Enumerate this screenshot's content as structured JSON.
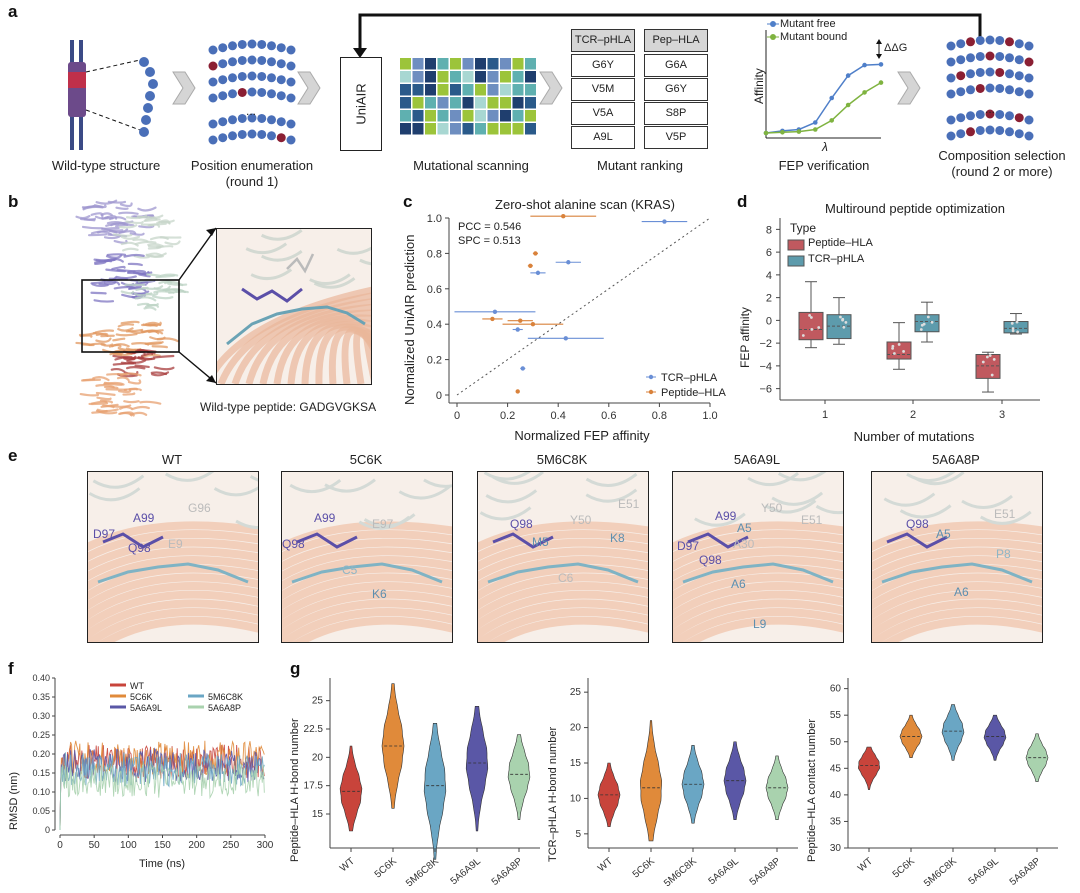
{
  "panel_labels": {
    "a": "a",
    "b": "b",
    "c": "c",
    "d": "d",
    "e": "e",
    "f": "f",
    "g": "g"
  },
  "a": {
    "captions": {
      "wild_type": "Wild-type structure",
      "position_enum_1": "Position enumeration",
      "position_enum_2": "(round 1)",
      "mutational_scanning": "Mutational scanning",
      "mutant_ranking": "Mutant ranking",
      "fep_verification": "FEP verification",
      "composition_1": "Composition selection",
      "composition_2": "(round 2 or more)"
    },
    "uniair": "UniAIR",
    "ellipsis": "...",
    "tables": {
      "tcr": {
        "header": "TCR–pHLA",
        "rows": [
          "G6Y",
          "V5M",
          "V5A",
          "A9L"
        ]
      },
      "pep": {
        "header": "Pep–HLA",
        "rows": [
          "G6A",
          "G6Y",
          "S8P",
          "V5P"
        ]
      }
    },
    "fep": {
      "legend_free": "Mutant free",
      "legend_bound": "Mutant bound",
      "ylabel": "Affinity",
      "xlabel": "λ",
      "ddg": "ΔΔG",
      "colors": {
        "free": "#4f7fc9",
        "bound": "#7fb340"
      }
    }
  },
  "b": {
    "caption": "Wild-type peptide: GADGVGKSA"
  },
  "chart_data": [
    {
      "id": "c",
      "type": "scatter",
      "title": "Zero-shot alanine scan (KRAS)",
      "xlabel": "Normalized FEP affinity",
      "ylabel": "Normalized UniAIR prediction",
      "xlim": [
        0,
        1.0
      ],
      "ylim": [
        0,
        1.0
      ],
      "xticks": [
        "0",
        "0.2",
        "0.4",
        "0.6",
        "0.8",
        "1.0"
      ],
      "yticks": [
        "0",
        "0.2",
        "0.4",
        "0.6",
        "0.8",
        "1.0"
      ],
      "annotations": [
        "PCC = 0.546",
        "SPC = 0.513"
      ],
      "legend_position": "bottom-right",
      "series": [
        {
          "name": "TCR–pHLA",
          "color": "#6a8fd6",
          "points": [
            {
              "x": 0.82,
              "y": 0.98,
              "xerr": 0.09
            },
            {
              "x": 0.44,
              "y": 0.75,
              "xerr": 0.05
            },
            {
              "x": 0.32,
              "y": 0.69,
              "xerr": 0.03
            },
            {
              "x": 0.15,
              "y": 0.47,
              "xerr": 0.16
            },
            {
              "x": 0.24,
              "y": 0.37,
              "xerr": 0.02
            },
            {
              "x": 0.43,
              "y": 0.32,
              "xerr": 0.15
            },
            {
              "x": 0.26,
              "y": 0.15,
              "xerr": 0.01
            }
          ]
        },
        {
          "name": "Peptide–HLA",
          "color": "#d9823b",
          "points": [
            {
              "x": 0.42,
              "y": 1.01,
              "xerr": 0.13
            },
            {
              "x": 0.31,
              "y": 0.8,
              "xerr": 0.01
            },
            {
              "x": 0.29,
              "y": 0.73,
              "xerr": 0.01
            },
            {
              "x": 0.14,
              "y": 0.43,
              "xerr": 0.04
            },
            {
              "x": 0.25,
              "y": 0.42,
              "xerr": 0.05
            },
            {
              "x": 0.3,
              "y": 0.4,
              "xerr": 0.12
            },
            {
              "x": 0.24,
              "y": 0.02,
              "xerr": 0.0
            }
          ]
        }
      ]
    },
    {
      "id": "d",
      "type": "box",
      "title": "Multiround peptide optimization",
      "xlabel": "Number of mutations",
      "ylabel": "FEP affinity",
      "categories": [
        "1",
        "2",
        "3"
      ],
      "ylim": [
        -7,
        9
      ],
      "yticks": [
        "8",
        "6",
        "4",
        "2",
        "0",
        "−2",
        "−4",
        "−6"
      ],
      "legend_title": "Type",
      "legend_position": "top-left",
      "series": [
        {
          "name": "Peptide–HLA",
          "color": "#c0595f",
          "boxes": [
            {
              "min": -2.4,
              "q1": -1.7,
              "median": -0.8,
              "q3": 0.7,
              "max": 3.4
            },
            {
              "min": -4.3,
              "q1": -3.4,
              "median": -3.0,
              "q3": -1.9,
              "max": -0.2
            },
            {
              "min": -6.3,
              "q1": -5.1,
              "median": -4.0,
              "q3": -3.0,
              "max": -2.8
            }
          ]
        },
        {
          "name": "TCR–pHLA",
          "color": "#5d9bac",
          "boxes": [
            {
              "min": -2.1,
              "q1": -1.6,
              "median": -0.5,
              "q3": 0.5,
              "max": 2.0
            },
            {
              "min": -1.9,
              "q1": -1.0,
              "median": -0.1,
              "q3": 0.5,
              "max": 1.6
            },
            {
              "min": -1.2,
              "q1": -1.1,
              "median": -0.7,
              "q3": -0.1,
              "max": 0.6
            }
          ]
        }
      ]
    },
    {
      "id": "f",
      "type": "line",
      "xlabel": "Time (ns)",
      "ylabel": "RMSD (nm)",
      "xlim": [
        0,
        300
      ],
      "ylim": [
        0,
        0.4
      ],
      "xticks": [
        "0",
        "50",
        "100",
        "150",
        "200",
        "250",
        "300"
      ],
      "yticks": [
        "0",
        "0.05",
        "0.10",
        "0.15",
        "0.20",
        "0.25",
        "0.30",
        "0.35",
        "0.40"
      ],
      "series": [
        {
          "name": "WT",
          "color": "#c8443b",
          "mean": 0.18
        },
        {
          "name": "5C6K",
          "color": "#e08a3a",
          "mean": 0.19
        },
        {
          "name": "5A6A9L",
          "color": "#5a57a6",
          "mean": 0.17
        },
        {
          "name": "5M6C8K",
          "color": "#6aa6c4",
          "mean": 0.16
        },
        {
          "name": "5A6A8P",
          "color": "#a9d2ae",
          "mean": 0.13
        }
      ]
    },
    {
      "id": "g1",
      "type": "violin",
      "ylabel": "Peptide–HLA H-bond number",
      "categories": [
        "WT",
        "5C6K",
        "5M6C8K",
        "5A6A9L",
        "5A6A8P"
      ],
      "ylim": [
        12,
        27
      ],
      "yticks": [
        "15",
        "17.5",
        "20",
        "22.5",
        "25"
      ],
      "values": [
        {
          "median": 17,
          "min": 13.5,
          "max": 21,
          "color": "#c8443b"
        },
        {
          "median": 21,
          "min": 15.5,
          "max": 26.5,
          "color": "#e08a3a"
        },
        {
          "median": 17.5,
          "min": 11,
          "max": 23,
          "color": "#6aa6c4"
        },
        {
          "median": 19.5,
          "min": 13.5,
          "max": 24.5,
          "color": "#5a57a6"
        },
        {
          "median": 18.5,
          "min": 14.5,
          "max": 22,
          "color": "#a9d2ae"
        }
      ]
    },
    {
      "id": "g2",
      "type": "violin",
      "ylabel": "TCR–pHLA H-bond number",
      "categories": [
        "WT",
        "5C6K",
        "5M6C8K",
        "5A6A9L",
        "5A6A8P"
      ],
      "ylim": [
        3,
        27
      ],
      "yticks": [
        "5",
        "10",
        "15",
        "20",
        "25"
      ],
      "values": [
        {
          "median": 10.5,
          "min": 6,
          "max": 15,
          "color": "#c8443b"
        },
        {
          "median": 11.5,
          "min": 4,
          "max": 21,
          "color": "#e08a3a"
        },
        {
          "median": 12,
          "min": 6.5,
          "max": 17.5,
          "color": "#6aa6c4"
        },
        {
          "median": 12.5,
          "min": 7,
          "max": 18,
          "color": "#5a57a6"
        },
        {
          "median": 11.5,
          "min": 7,
          "max": 16,
          "color": "#a9d2ae"
        }
      ]
    },
    {
      "id": "g3",
      "type": "violin",
      "ylabel": "Peptide–HLA contact number",
      "categories": [
        "WT",
        "5C6K",
        "5M6C8K",
        "5A6A9L",
        "5A6A8P"
      ],
      "ylim": [
        30,
        62
      ],
      "yticks": [
        "30",
        "35",
        "40",
        "45",
        "50",
        "55",
        "60"
      ],
      "values": [
        {
          "median": 45.5,
          "min": 41,
          "max": 49,
          "color": "#c8443b"
        },
        {
          "median": 51,
          "min": 47,
          "max": 55,
          "color": "#e08a3a"
        },
        {
          "median": 52,
          "min": 46.5,
          "max": 57,
          "color": "#6aa6c4"
        },
        {
          "median": 51,
          "min": 46.5,
          "max": 55,
          "color": "#5a57a6"
        },
        {
          "median": 47,
          "min": 42.5,
          "max": 51.5,
          "color": "#a9d2ae"
        }
      ]
    }
  ],
  "e": {
    "panels": [
      {
        "title": "WT",
        "labels": [
          {
            "t": "A99",
            "c": "#5b4fa8"
          },
          {
            "t": "G96",
            "c": "#bbb"
          },
          {
            "t": "D97",
            "c": "#5b4fa8"
          },
          {
            "t": "Q98",
            "c": "#5b4fa8"
          },
          {
            "t": "E9",
            "c": "#bbb"
          }
        ]
      },
      {
        "title": "5C6K",
        "labels": [
          {
            "t": "A99",
            "c": "#5b4fa8"
          },
          {
            "t": "E97",
            "c": "#bbb"
          },
          {
            "t": "Q98",
            "c": "#5b4fa8"
          },
          {
            "t": "C5",
            "c": "#8fb6c6"
          },
          {
            "t": "K6",
            "c": "#5d8fb0"
          }
        ]
      },
      {
        "title": "5M6C8K",
        "labels": [
          {
            "t": "Y50",
            "c": "#bbb"
          },
          {
            "t": "E51",
            "c": "#bbb"
          },
          {
            "t": "Q98",
            "c": "#5b4fa8"
          },
          {
            "t": "M5",
            "c": "#5d8fb0"
          },
          {
            "t": "K8",
            "c": "#5d8fb0"
          },
          {
            "t": "C6",
            "c": "#bbb"
          }
        ]
      },
      {
        "title": "5A6A9L",
        "labels": [
          {
            "t": "A99",
            "c": "#5b4fa8"
          },
          {
            "t": "Y50",
            "c": "#bbb"
          },
          {
            "t": "E51",
            "c": "#bbb"
          },
          {
            "t": "D97",
            "c": "#5b4fa8"
          },
          {
            "t": "Q98",
            "c": "#5b4fa8"
          },
          {
            "t": "A5",
            "c": "#5d8fb0"
          },
          {
            "t": "A30",
            "c": "#bbb"
          },
          {
            "t": "A6",
            "c": "#5d8fb0"
          },
          {
            "t": "L9",
            "c": "#5d8fb0"
          }
        ]
      },
      {
        "title": "5A6A8P",
        "labels": [
          {
            "t": "Q98",
            "c": "#5b4fa8"
          },
          {
            "t": "A5",
            "c": "#5d8fb0"
          },
          {
            "t": "E51",
            "c": "#bbb"
          },
          {
            "t": "P8",
            "c": "#8fb6c6"
          },
          {
            "t": "A6",
            "c": "#5d8fb0"
          }
        ]
      }
    ]
  }
}
